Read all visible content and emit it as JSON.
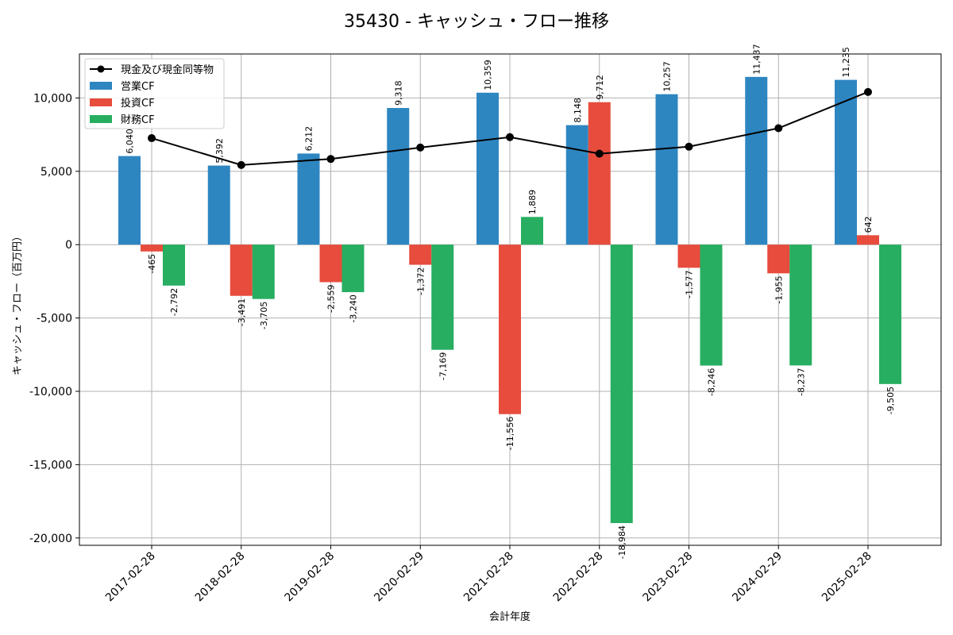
{
  "chart_data": {
    "type": "bar",
    "title": "35430 - キャッシュ・フロー推移",
    "xlabel": "会計年度",
    "ylabel": "キャッシュ・フロー（百万円）",
    "ylim": [
      -20500,
      13000
    ],
    "yticks": [
      -20000,
      -15000,
      -10000,
      -5000,
      0,
      5000,
      10000
    ],
    "ytick_labels": [
      "-20,000",
      "-15,000",
      "-10,000",
      "-5,000",
      "0",
      "5,000",
      "10,000"
    ],
    "grid": true,
    "legend_position": "top-left",
    "categories": [
      "2017-02-28",
      "2018-02-28",
      "2019-02-28",
      "2020-02-29",
      "2021-02-28",
      "2022-02-28",
      "2023-02-28",
      "2024-02-29",
      "2025-02-28"
    ],
    "series": [
      {
        "name": "営業CF",
        "kind": "bar",
        "color": "#2e86c1",
        "values": [
          6040,
          5392,
          6212,
          9318,
          10359,
          8148,
          10257,
          11437,
          11235
        ],
        "labels": [
          "6,040",
          "5,392",
          "6,212",
          "9,318",
          "10,359",
          "8,148",
          "10,257",
          "11,437",
          "11,235"
        ]
      },
      {
        "name": "投資CF",
        "kind": "bar",
        "color": "#e74c3c",
        "values": [
          -465,
          -3491,
          -2559,
          -1372,
          -11556,
          9712,
          -1577,
          -1955,
          642
        ],
        "labels": [
          "-465",
          "-3,491",
          "-2,559",
          "-1,372",
          "-11,556",
          "9,712",
          "-1,577",
          "-1,955",
          "642"
        ]
      },
      {
        "name": "財務CF",
        "kind": "bar",
        "color": "#27ae60",
        "values": [
          -2792,
          -3705,
          -3240,
          -7169,
          1889,
          -18984,
          -8246,
          -8237,
          -9505
        ],
        "labels": [
          "-2,792",
          "-3,705",
          "-3,240",
          "-7,169",
          "1,889",
          "-18,984",
          "-8,246",
          "-8,237",
          "-9,505"
        ]
      },
      {
        "name": "現金及び現金同等物",
        "kind": "line",
        "color": "#000000",
        "values": [
          7260,
          5430,
          5840,
          6620,
          7330,
          6200,
          6680,
          7940,
          10410
        ]
      }
    ]
  }
}
